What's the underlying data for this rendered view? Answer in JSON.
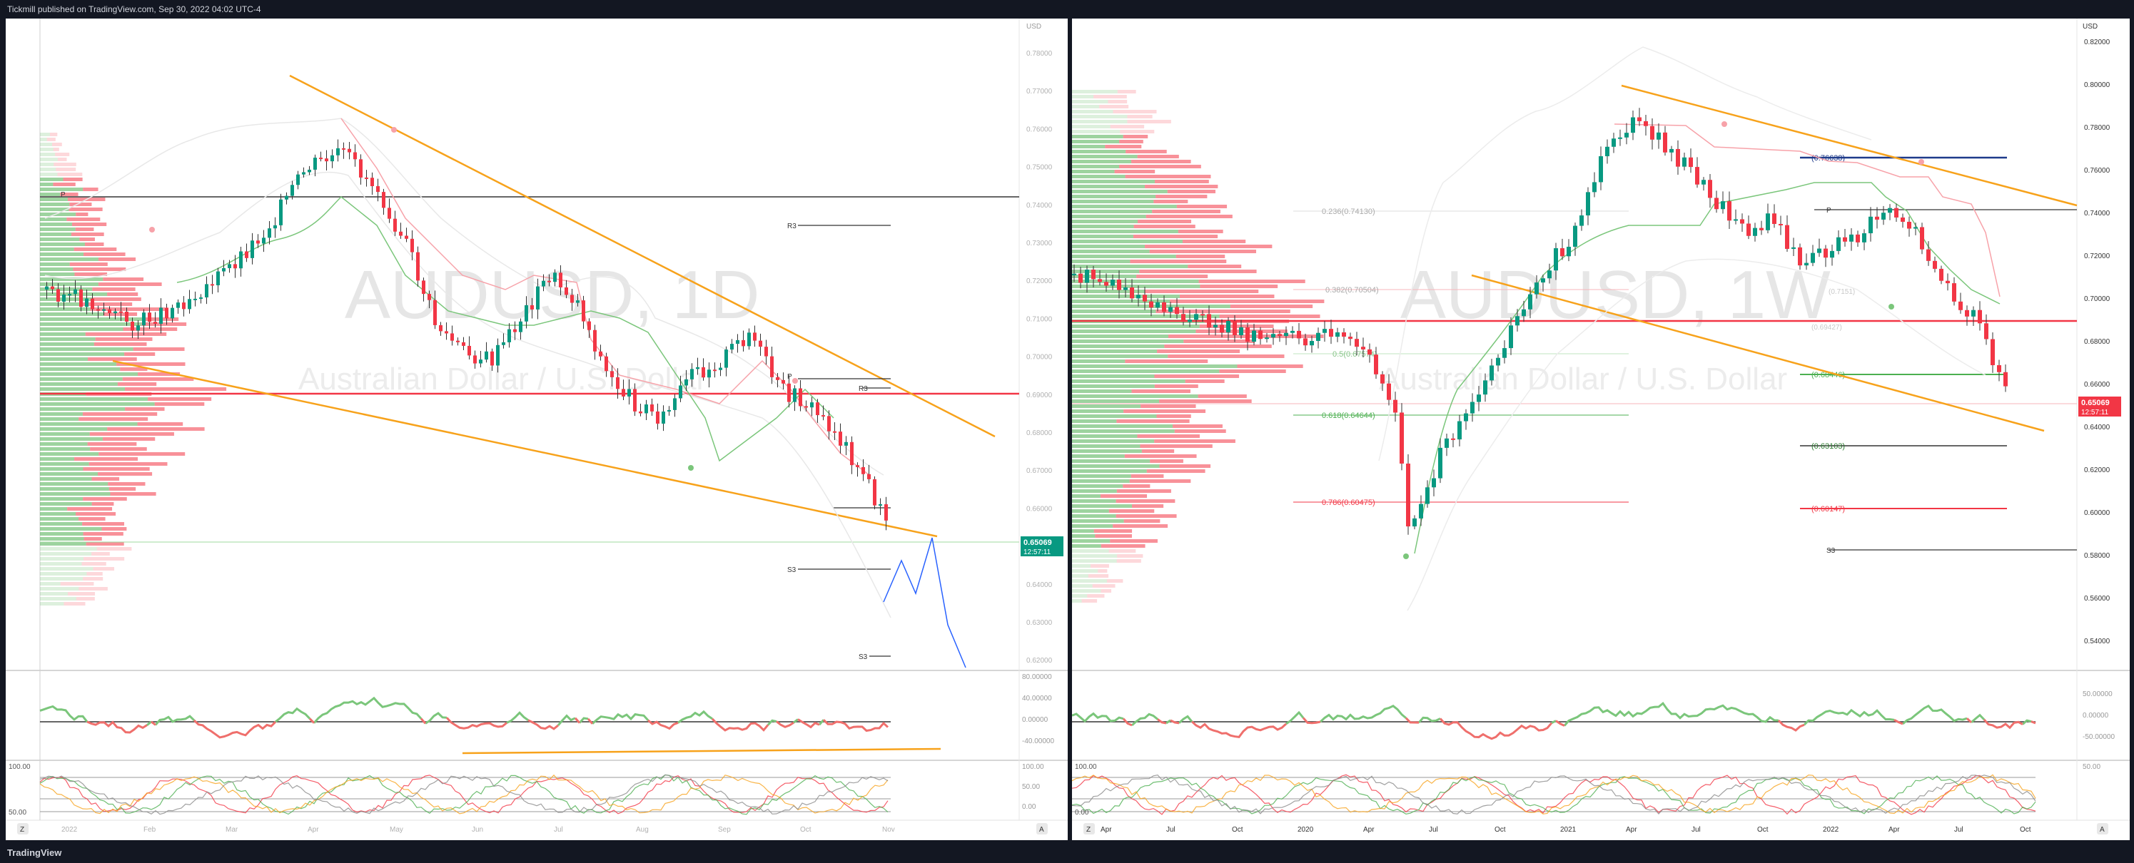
{
  "header": {
    "published": "Tickmill published on TradingView.com, Sep 30, 2022 04:02 UTC-4"
  },
  "footer": {
    "brand": "TradingView"
  },
  "left": {
    "symbol": "AUDUSD, 1D",
    "description": "Australian Dollar / U.S. Dollar",
    "currency": "USD",
    "price_label": "0.65069",
    "countdown": "12:57:11",
    "price_ticks": [
      "0.78000",
      "0.77000",
      "0.76000",
      "0.75000",
      "0.74000",
      "0.73000",
      "0.72000",
      "0.71000",
      "0.70000",
      "0.69000",
      "0.68000",
      "0.67000",
      "0.66000",
      "0.65000",
      "0.64000",
      "0.63000",
      "0.62000"
    ],
    "time_ticks": [
      "2022",
      "Feb",
      "Mar",
      "Apr",
      "May",
      "Jun",
      "Jul",
      "Aug",
      "Sep",
      "Oct",
      "Nov"
    ],
    "pivots": {
      "p1": "P",
      "r3": "R3",
      "p2": "P",
      "r3b": "R3",
      "s3": "S3",
      "s3b": "S3"
    },
    "rsi_ticks": [
      "80.00000",
      "40.00000",
      "0.00000",
      "-40.00000"
    ],
    "stoch_ticks": [
      "100.00",
      "50.00",
      "0.00"
    ],
    "stoch_ticks_right": [
      "100.00",
      "50.00",
      "0.00"
    ],
    "corner_left": "Z",
    "corner_right": "A"
  },
  "right": {
    "symbol": "AUDUSD, 1W",
    "description": "Australian Dollar / U.S. Dollar",
    "currency": "USD",
    "price_label": "0.65069",
    "countdown": "12:57:11",
    "price_ticks": [
      "0.82000",
      "0.80000",
      "0.78000",
      "0.76000",
      "0.74000",
      "0.72000",
      "0.70000",
      "0.68000",
      "0.66000",
      "0.64000",
      "0.62000",
      "0.60000",
      "0.58000",
      "0.56000",
      "0.54000"
    ],
    "time_ticks": [
      "Apr",
      "Jul",
      "Oct",
      "2020",
      "Apr",
      "Jul",
      "Oct",
      "2021",
      "Apr",
      "Jul",
      "Oct",
      "2022",
      "Apr",
      "Jul",
      "Oct"
    ],
    "fib": {
      "f0236": "0.236(0.74130)",
      "f0382": "0.382(0.70504)",
      "f05": "0.5(0.67574)",
      "f0618": "0.618(0.64644)",
      "f0786": "0.786(0.60475)"
    },
    "levels": {
      "l76638": "(0.76638)",
      "l68446": "(0.68446)",
      "l63103": "(0.63103)",
      "l60147": "(0.60147)",
      "p": "P",
      "s3": "S3",
      "lx": "(0.7151)",
      "ly": "(0.69427)"
    },
    "rsi_ticks": [
      "50.00000",
      "0.00000",
      "-50.00000"
    ],
    "stoch_ticks": [
      "50.00"
    ],
    "stoch_left": [
      "100.00",
      "0.00"
    ],
    "corner_left": "Z",
    "corner_right": "A"
  }
}
